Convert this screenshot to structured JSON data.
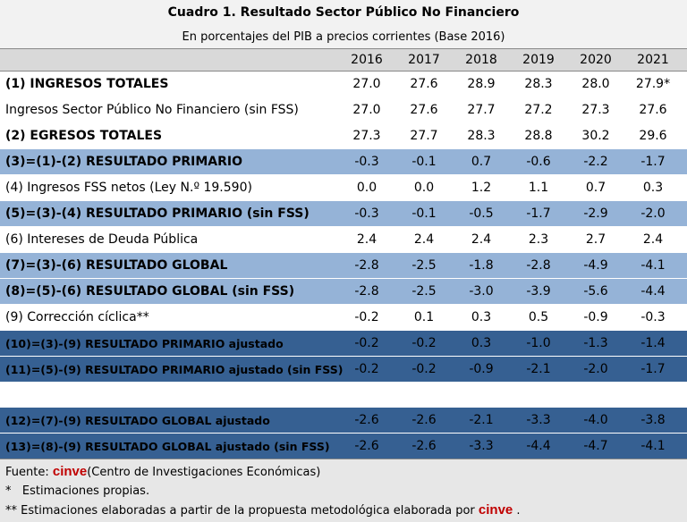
{
  "header": {
    "title": "Cuadro 1. Resultado Sector Público No Financiero",
    "subtitle": "En porcentajes del PIB a precios corrientes (Base 2016)"
  },
  "table": {
    "columns": [
      "2016",
      "2017",
      "2018",
      "2019",
      "2020",
      "2021"
    ],
    "rows": [
      [
        "(1) INGRESOS TOTALES",
        "27.0",
        "27.6",
        "28.9",
        "28.3",
        "28.0",
        "27.9*"
      ],
      [
        "Ingresos Sector Público No Financiero (sin FSS)",
        "27.0",
        "27.6",
        "27.7",
        "27.2",
        "27.3",
        "27.6"
      ],
      [
        "(2) EGRESOS TOTALES",
        "27.3",
        "27.7",
        "28.3",
        "28.8",
        "30.2",
        "29.6"
      ],
      [
        "(3)=(1)-(2) RESULTADO PRIMARIO",
        "-0.3",
        "-0.1",
        "0.7",
        "-0.6",
        "-2.2",
        "-1.7"
      ],
      [
        "(4) Ingresos FSS netos (Ley N.º 19.590)",
        "0.0",
        "0.0",
        "1.2",
        "1.1",
        "0.7",
        "0.3"
      ],
      [
        "(5)=(3)-(4) RESULTADO PRIMARIO (sin FSS)",
        "-0.3",
        "-0.1",
        "-0.5",
        "-1.7",
        "-2.9",
        "-2.0"
      ],
      [
        "(6) Intereses de Deuda Pública",
        "2.4",
        "2.4",
        "2.4",
        "2.3",
        "2.7",
        "2.4"
      ],
      [
        "(7)=(3)-(6) RESULTADO GLOBAL",
        "-2.8",
        "-2.5",
        "-1.8",
        "-2.8",
        "-4.9",
        "-4.1"
      ],
      [
        "(8)=(5)-(6) RESULTADO GLOBAL (sin FSS)",
        "-2.8",
        "-2.5",
        "-3.0",
        "-3.9",
        "-5.6",
        "-4.4"
      ],
      [
        "(9) Corrección cíclica**",
        "-0.2",
        "0.1",
        "0.3",
        "0.5",
        "-0.9",
        "-0.3"
      ],
      [
        "(10)=(3)-(9) RESULTADO PRIMARIO ajustado",
        "-0.2",
        "-0.2",
        "0.3",
        "-1.0",
        "-1.3",
        "-1.4"
      ],
      [
        "(11)=(5)-(9) RESULTADO PRIMARIO ajustado (sin FSS)",
        "-0.2",
        "-0.2",
        "-0.9",
        "-2.1",
        "-2.0",
        "-1.7"
      ],
      [
        "(12)=(7)-(9) RESULTADO GLOBAL  ajustado",
        "-2.6",
        "-2.6",
        "-2.1",
        "-3.3",
        "-4.0",
        "-3.8"
      ],
      [
        "(13)=(8)-(9) RESULTADO GLOBAL ajustado (sin FSS)",
        "-2.6",
        "-2.6",
        "-3.3",
        "-4.4",
        "-4.7",
        "-4.1"
      ]
    ]
  },
  "footer": {
    "source": {
      "prefix": "Fuente:",
      "brand": "cinve",
      "text": "(Centro de Investigaciones Económicas)"
    },
    "notes": [
      "*   Estimaciones propias.",
      "** Estimaciones elaboradas a partir de la propuesta metodológica elaborada por"
    ],
    "note_brand": "cinve",
    "note_end": "."
  }
}
